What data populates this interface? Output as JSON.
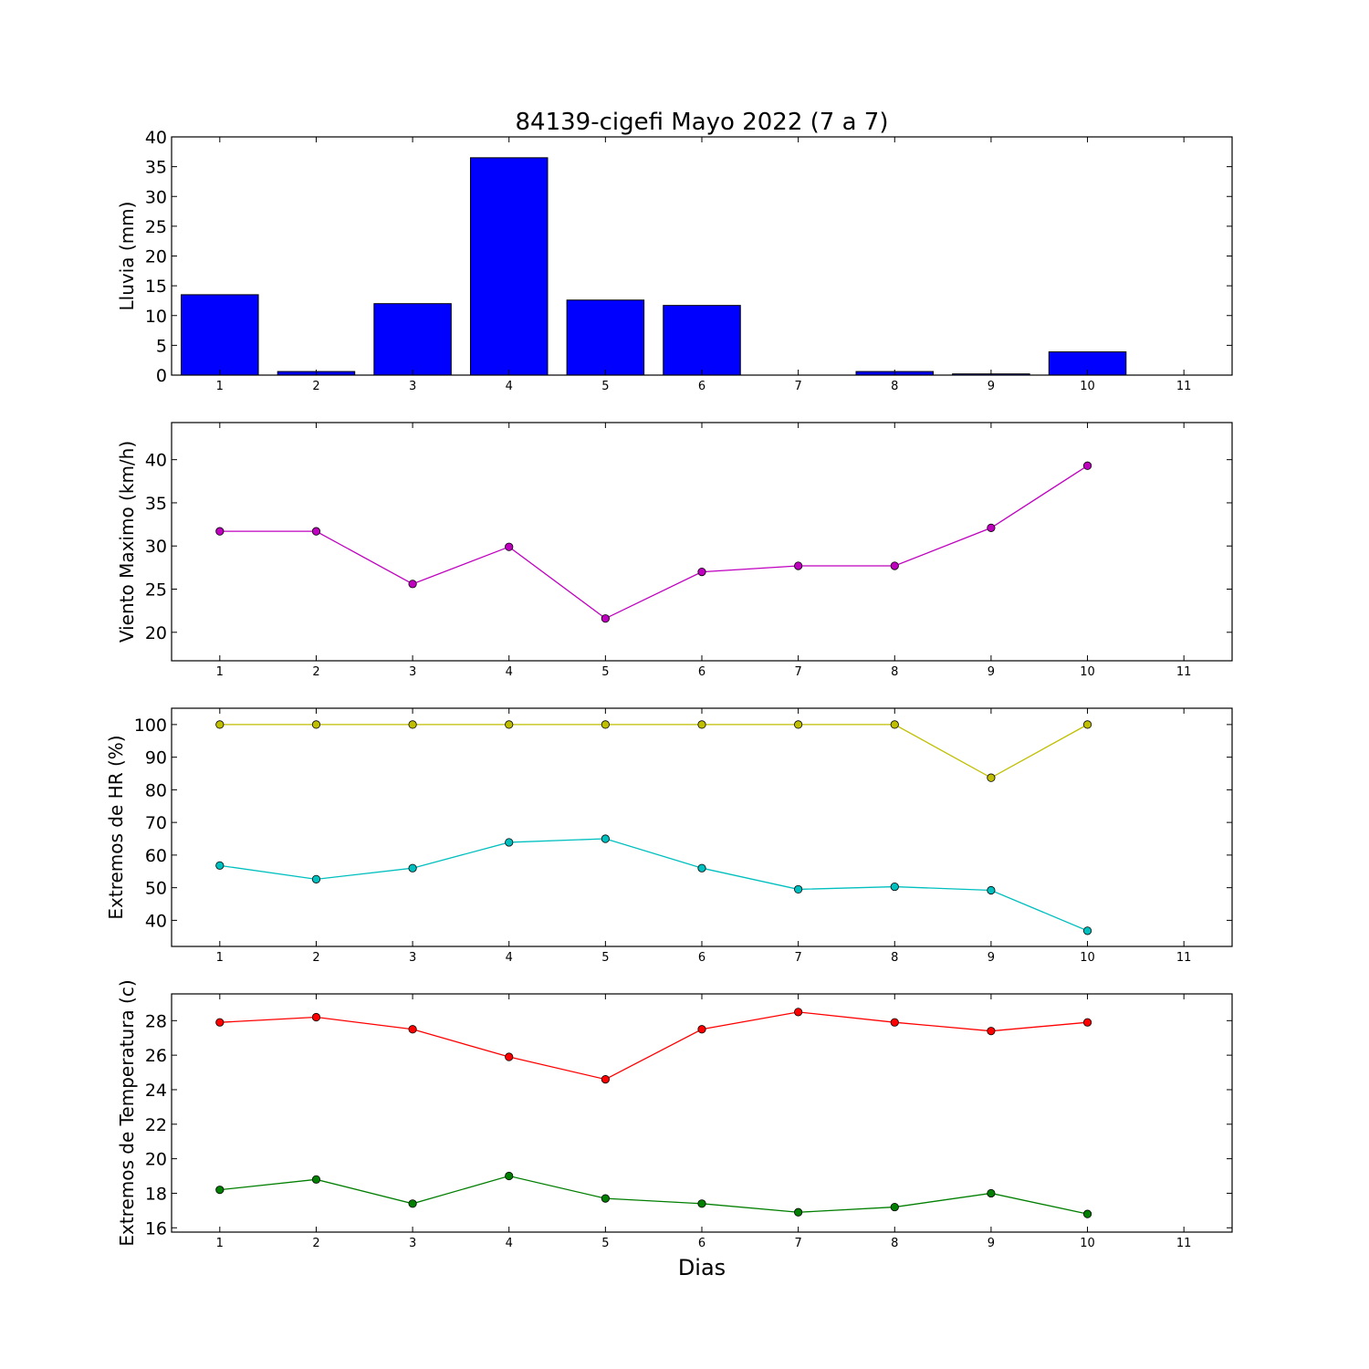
{
  "title": "84139-cigefi Mayo 2022  (7 a 7)",
  "xlabel": "Dias",
  "chart_data": [
    {
      "type": "bar",
      "ylabel": "Lluvia (mm)",
      "x": [
        1,
        2,
        3,
        4,
        5,
        6,
        7,
        8,
        9,
        10
      ],
      "xlim": [
        0.5,
        11.5
      ],
      "xticks": [
        "1",
        "2",
        "3",
        "4",
        "5",
        "6",
        "7",
        "8",
        "9",
        "10",
        "11"
      ],
      "ylim": [
        0,
        40
      ],
      "yticks": [
        "0",
        "5",
        "10",
        "15",
        "20",
        "25",
        "30",
        "35",
        "40"
      ],
      "series": [
        {
          "values": [
            13.5,
            0.6,
            12.0,
            36.5,
            12.6,
            11.7,
            0.0,
            0.6,
            0.2,
            3.9
          ],
          "color": "#0000ff"
        }
      ]
    },
    {
      "type": "line",
      "ylabel": "Viento Maximo (km/h)",
      "x": [
        1,
        2,
        3,
        4,
        5,
        6,
        7,
        8,
        9,
        10
      ],
      "xlim": [
        0.5,
        11.5
      ],
      "xticks": [
        "1",
        "2",
        "3",
        "4",
        "5",
        "6",
        "7",
        "8",
        "9",
        "10",
        "11"
      ],
      "ylim": [
        16.7,
        44.3
      ],
      "yticks": [
        "20",
        "25",
        "30",
        "35",
        "40"
      ],
      "series": [
        {
          "values": [
            31.7,
            31.7,
            25.6,
            29.9,
            21.6,
            27.0,
            27.7,
            27.7,
            32.1,
            39.3
          ],
          "color": "#bf00bf"
        }
      ]
    },
    {
      "type": "line",
      "ylabel": "Extremos de HR (%)",
      "x": [
        1,
        2,
        3,
        4,
        5,
        6,
        7,
        8,
        9,
        10
      ],
      "xlim": [
        0.5,
        11.5
      ],
      "xticks": [
        "1",
        "2",
        "3",
        "4",
        "5",
        "6",
        "7",
        "8",
        "9",
        "10",
        "11"
      ],
      "ylim": [
        32.0,
        105.0
      ],
      "yticks": [
        "40",
        "50",
        "60",
        "70",
        "80",
        "90",
        "100"
      ],
      "series": [
        {
          "values": [
            100,
            100,
            100,
            100,
            100,
            100,
            100,
            100,
            83.7,
            100
          ],
          "color": "#bfbf00"
        },
        {
          "values": [
            56.8,
            52.6,
            56.0,
            63.9,
            65.0,
            56.0,
            49.5,
            50.3,
            49.2,
            36.8
          ],
          "color": "#00bfbf"
        }
      ]
    },
    {
      "type": "line",
      "ylabel": "Extremos de Temperatura (c)",
      "x": [
        1,
        2,
        3,
        4,
        5,
        6,
        7,
        8,
        9,
        10
      ],
      "xlim": [
        0.5,
        11.5
      ],
      "xticks": [
        "1",
        "2",
        "3",
        "4",
        "5",
        "6",
        "7",
        "8",
        "9",
        "10",
        "11"
      ],
      "ylim": [
        15.75,
        29.55
      ],
      "yticks": [
        "16",
        "18",
        "20",
        "22",
        "24",
        "26",
        "28"
      ],
      "series": [
        {
          "values": [
            27.9,
            28.2,
            27.5,
            25.9,
            24.6,
            27.5,
            28.5,
            27.9,
            27.4,
            27.9
          ],
          "color": "#ff0000"
        },
        {
          "values": [
            18.2,
            18.8,
            17.4,
            19.0,
            17.7,
            17.4,
            16.9,
            17.2,
            18.0,
            16.8
          ],
          "color": "#007f00"
        }
      ]
    }
  ]
}
